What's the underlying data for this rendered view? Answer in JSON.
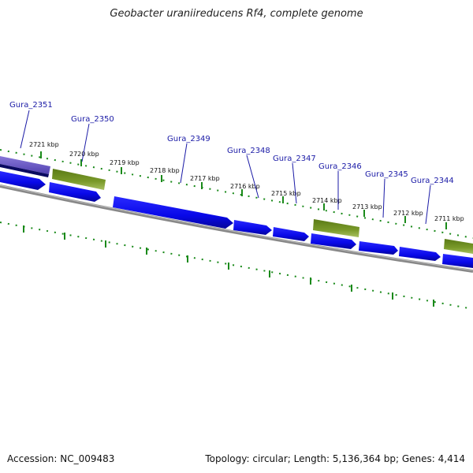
{
  "title": "Geobacter uraniireducens Rf4, complete genome",
  "accession": "Accession: NC_009483",
  "summary": "Topology: circular; Length: 5,136,364 bp; Genes: 4,414",
  "tick_labels": [
    "2721 kbp",
    "2720 kbp",
    "2719 kbp",
    "2718 kbp",
    "2717 kbp",
    "2716 kbp",
    "2715 kbp",
    "2714 kbp",
    "2713 kbp",
    "2712 kbp",
    "2711 kbp"
  ],
  "genes": [
    {
      "label": "Gura_2351",
      "track": "violet"
    },
    {
      "label": "Gura_2350",
      "track": "green"
    },
    {
      "label": "Gura_2349",
      "track": "blue"
    },
    {
      "label": "Gura_2348",
      "track": "blue"
    },
    {
      "label": "Gura_2347",
      "track": "blue"
    },
    {
      "label": "Gura_2346",
      "track": "green"
    },
    {
      "label": "Gura_2345",
      "track": "blue"
    },
    {
      "label": "Gura_2344",
      "track": "blue"
    }
  ],
  "colors": {
    "gene_blue": "#0a0af0",
    "gene_green": "#6f8f20",
    "gene_violet": "#7060c8",
    "backbone": "#808080",
    "tick_green": "#1a8a1a",
    "label_blue": "#1a1aa6"
  }
}
